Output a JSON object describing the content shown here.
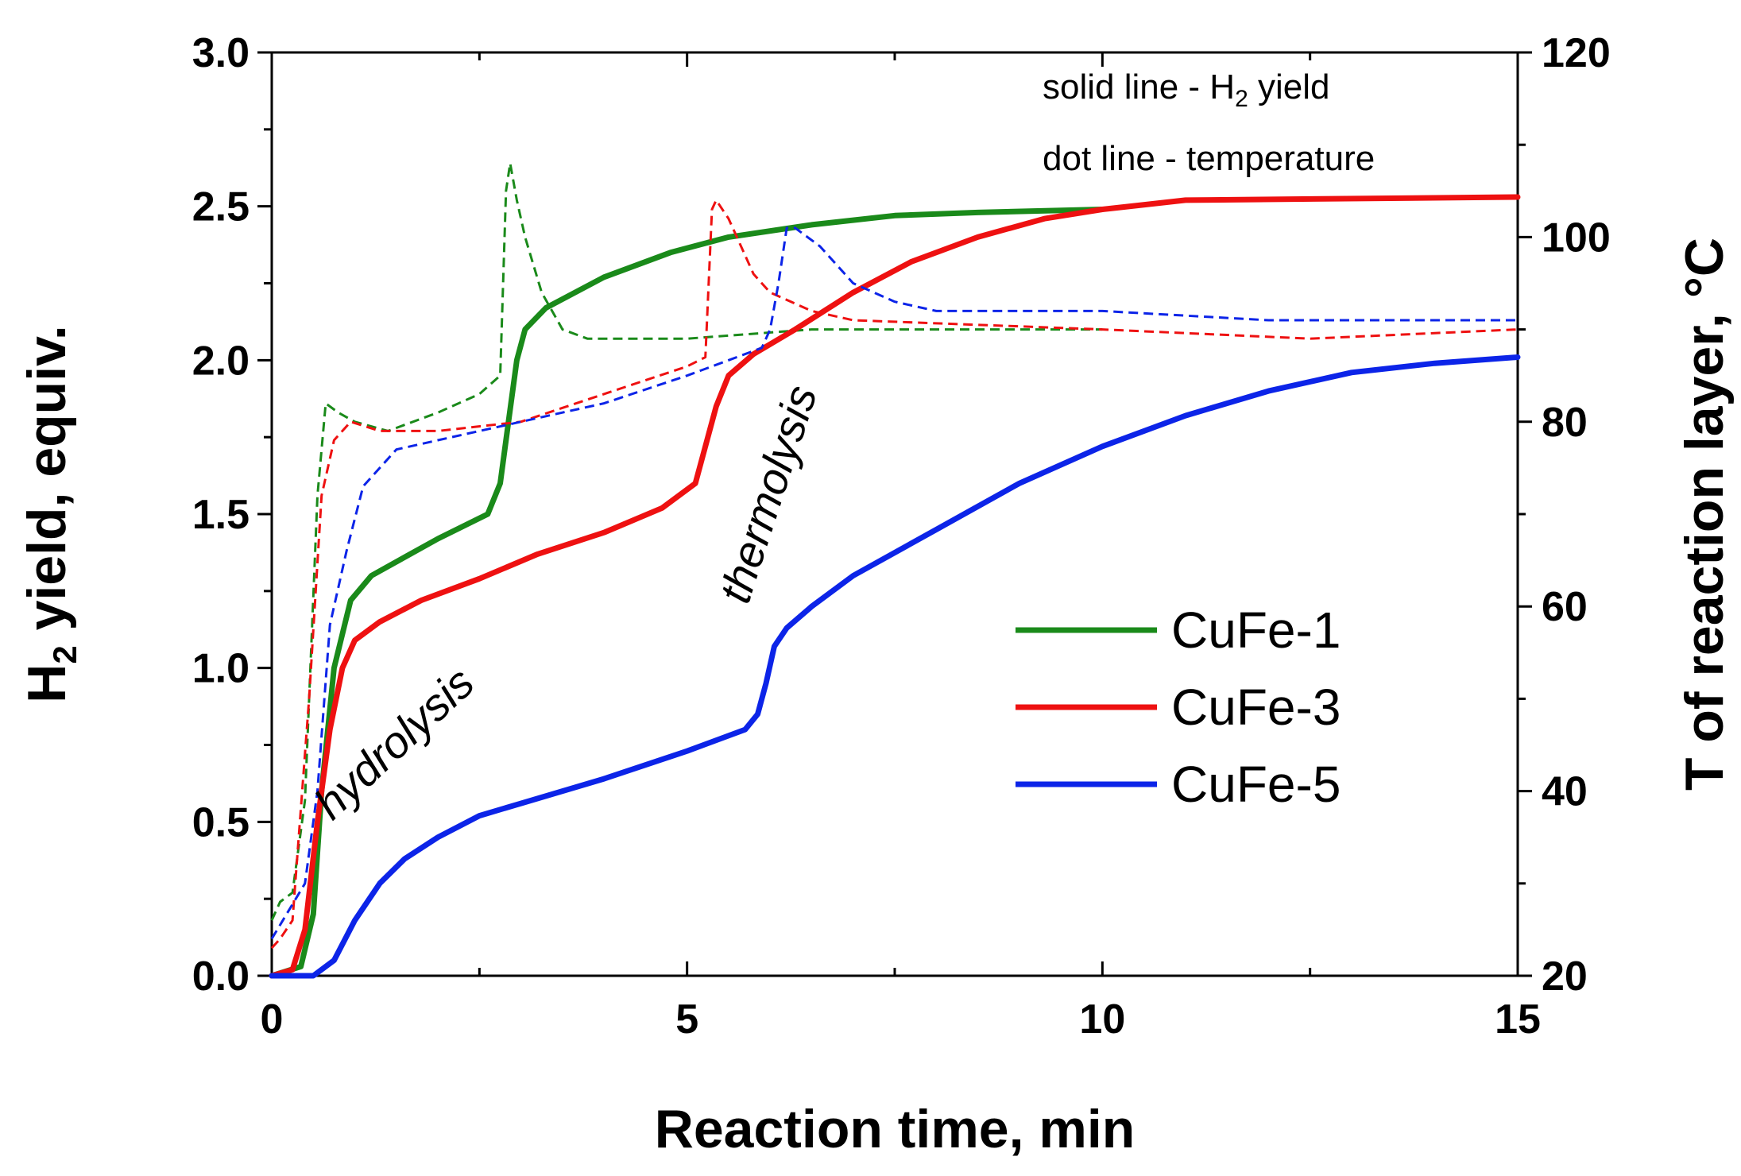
{
  "chart_data": {
    "type": "line",
    "xlabel": "Reaction time, min",
    "ylabel": {
      "main": "H",
      "sub": "2",
      "rest": " yield, equiv."
    },
    "y2label": "T of reaction layer, °C",
    "xlim": [
      0,
      15
    ],
    "ylim": [
      0,
      3
    ],
    "y2lim": [
      20,
      120
    ],
    "x_ticks": [
      0,
      5,
      10,
      15
    ],
    "y_ticks": [
      0.0,
      0.5,
      1.0,
      1.5,
      2.0,
      2.5,
      3.0
    ],
    "y_tick_labels": [
      "0.0",
      "0.5",
      "1.0",
      "1.5",
      "2.0",
      "2.5",
      "3.0"
    ],
    "y2_ticks": [
      20,
      40,
      60,
      80,
      100,
      120
    ],
    "notes": [
      {
        "main": "solid line - H",
        "sub": "2",
        "rest": " yield"
      },
      {
        "main": "dot line - temperature",
        "sub": "",
        "rest": ""
      }
    ],
    "annotations": [
      {
        "text": "hydrolysis",
        "x": 1.6,
        "y": 0.72,
        "angle": -43
      },
      {
        "text": "thermolysis",
        "x": 6.15,
        "y": 1.55,
        "angle": -72
      }
    ],
    "series": [
      {
        "name": "CuFe-1",
        "color": "#1a8a1a",
        "h2_yield": [
          [
            0,
            0
          ],
          [
            0.35,
            0.03
          ],
          [
            0.5,
            0.2
          ],
          [
            0.6,
            0.6
          ],
          [
            0.75,
            1.0
          ],
          [
            0.95,
            1.22
          ],
          [
            1.2,
            1.3
          ],
          [
            1.6,
            1.36
          ],
          [
            2.0,
            1.42
          ],
          [
            2.6,
            1.5
          ],
          [
            2.75,
            1.6
          ],
          [
            2.85,
            1.8
          ],
          [
            2.95,
            2.0
          ],
          [
            3.05,
            2.1
          ],
          [
            3.3,
            2.17
          ],
          [
            4.0,
            2.27
          ],
          [
            4.8,
            2.35
          ],
          [
            5.5,
            2.4
          ],
          [
            6.5,
            2.44
          ],
          [
            7.5,
            2.47
          ],
          [
            8.5,
            2.48
          ],
          [
            10,
            2.49
          ]
        ],
        "temperature": [
          [
            0,
            26
          ],
          [
            0.1,
            28
          ],
          [
            0.25,
            29
          ],
          [
            0.4,
            39
          ],
          [
            0.55,
            72
          ],
          [
            0.65,
            82
          ],
          [
            0.8,
            81
          ],
          [
            1.0,
            80
          ],
          [
            1.4,
            79
          ],
          [
            2.0,
            81
          ],
          [
            2.5,
            83
          ],
          [
            2.75,
            85
          ],
          [
            2.82,
            105
          ],
          [
            2.87,
            108
          ],
          [
            2.95,
            104
          ],
          [
            3.05,
            100
          ],
          [
            3.25,
            94
          ],
          [
            3.5,
            90
          ],
          [
            3.8,
            89
          ],
          [
            5.0,
            89
          ],
          [
            6.5,
            90
          ],
          [
            8,
            90
          ],
          [
            10,
            90
          ]
        ]
      },
      {
        "name": "CuFe-3",
        "color": "#ee1111",
        "h2_yield": [
          [
            0,
            0
          ],
          [
            0.25,
            0.02
          ],
          [
            0.4,
            0.15
          ],
          [
            0.55,
            0.5
          ],
          [
            0.7,
            0.8
          ],
          [
            0.85,
            1.0
          ],
          [
            1.0,
            1.09
          ],
          [
            1.3,
            1.15
          ],
          [
            1.8,
            1.22
          ],
          [
            2.5,
            1.29
          ],
          [
            3.2,
            1.37
          ],
          [
            4.0,
            1.44
          ],
          [
            4.7,
            1.52
          ],
          [
            5.1,
            1.6
          ],
          [
            5.2,
            1.7
          ],
          [
            5.35,
            1.85
          ],
          [
            5.5,
            1.95
          ],
          [
            5.8,
            2.02
          ],
          [
            6.3,
            2.1
          ],
          [
            7.0,
            2.22
          ],
          [
            7.7,
            2.32
          ],
          [
            8.5,
            2.4
          ],
          [
            9.3,
            2.46
          ],
          [
            10,
            2.49
          ],
          [
            11,
            2.52
          ],
          [
            15,
            2.53
          ]
        ],
        "temperature": [
          [
            0,
            23
          ],
          [
            0.1,
            24
          ],
          [
            0.25,
            26
          ],
          [
            0.45,
            50
          ],
          [
            0.6,
            72
          ],
          [
            0.75,
            78
          ],
          [
            0.95,
            80
          ],
          [
            1.3,
            79
          ],
          [
            2.0,
            79
          ],
          [
            3.0,
            80
          ],
          [
            4.0,
            83
          ],
          [
            5.0,
            86
          ],
          [
            5.22,
            87
          ],
          [
            5.3,
            103
          ],
          [
            5.35,
            104
          ],
          [
            5.5,
            102
          ],
          [
            5.8,
            96
          ],
          [
            6.0,
            94
          ],
          [
            6.5,
            92
          ],
          [
            7,
            91
          ],
          [
            10,
            90
          ],
          [
            12.5,
            89
          ],
          [
            15,
            90
          ]
        ]
      },
      {
        "name": "CuFe-5",
        "color": "#0c24e8",
        "h2_yield": [
          [
            0,
            0
          ],
          [
            0.5,
            0.0
          ],
          [
            0.75,
            0.05
          ],
          [
            1.0,
            0.18
          ],
          [
            1.3,
            0.3
          ],
          [
            1.6,
            0.38
          ],
          [
            2.0,
            0.45
          ],
          [
            2.5,
            0.52
          ],
          [
            3.0,
            0.56
          ],
          [
            4.0,
            0.64
          ],
          [
            5.0,
            0.73
          ],
          [
            5.7,
            0.8
          ],
          [
            5.85,
            0.85
          ],
          [
            5.95,
            0.95
          ],
          [
            6.05,
            1.07
          ],
          [
            6.2,
            1.13
          ],
          [
            6.5,
            1.2
          ],
          [
            7.0,
            1.3
          ],
          [
            8.0,
            1.45
          ],
          [
            9.0,
            1.6
          ],
          [
            10.0,
            1.72
          ],
          [
            11.0,
            1.82
          ],
          [
            12.0,
            1.9
          ],
          [
            13.0,
            1.96
          ],
          [
            14.0,
            1.99
          ],
          [
            15,
            2.01
          ]
        ],
        "temperature": [
          [
            0,
            24
          ],
          [
            0.2,
            27
          ],
          [
            0.4,
            30
          ],
          [
            0.55,
            40
          ],
          [
            0.7,
            58
          ],
          [
            0.9,
            66
          ],
          [
            1.1,
            73
          ],
          [
            1.5,
            77
          ],
          [
            2.0,
            78
          ],
          [
            3.0,
            80
          ],
          [
            4.0,
            82
          ],
          [
            5.0,
            85
          ],
          [
            5.9,
            88
          ],
          [
            6.0,
            90
          ],
          [
            6.1,
            95
          ],
          [
            6.2,
            101
          ],
          [
            6.3,
            101
          ],
          [
            6.6,
            99
          ],
          [
            7,
            95
          ],
          [
            7.5,
            93
          ],
          [
            8,
            92
          ],
          [
            10,
            92
          ],
          [
            12,
            91
          ],
          [
            15,
            91
          ]
        ]
      }
    ]
  }
}
